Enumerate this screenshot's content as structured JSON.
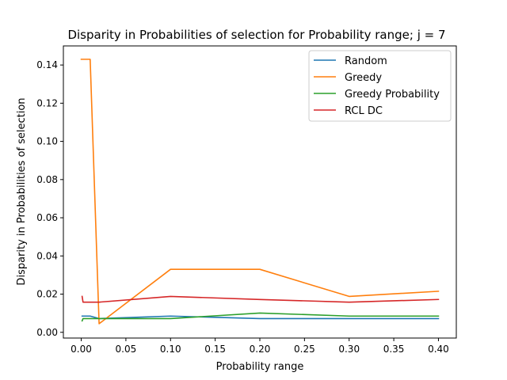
{
  "chart_data": {
    "type": "line",
    "title": "Disparity in Probabilities of selection for Probability range; j = 7",
    "xlabel": "Probability range",
    "ylabel": "Disparity in Probabilities of selection",
    "xlim": [
      -0.02,
      0.42
    ],
    "ylim": [
      -0.003,
      0.15
    ],
    "xticks": [
      0.0,
      0.05,
      0.1,
      0.15,
      0.2,
      0.25,
      0.3,
      0.35,
      0.4
    ],
    "xtick_labels": [
      "0.00",
      "0.05",
      "0.10",
      "0.15",
      "0.20",
      "0.25",
      "0.30",
      "0.35",
      "0.40"
    ],
    "yticks": [
      0.0,
      0.02,
      0.04,
      0.06,
      0.08,
      0.1,
      0.12,
      0.14
    ],
    "ytick_labels": [
      "0.00",
      "0.02",
      "0.04",
      "0.06",
      "0.08",
      "0.10",
      "0.12",
      "0.14"
    ],
    "grid": false,
    "legend_position": "top-right",
    "series": [
      {
        "name": "Random",
        "color": "#1f77b4",
        "x": [
          0.001,
          0.01,
          0.02,
          0.1,
          0.2,
          0.3,
          0.4
        ],
        "y": [
          0.0085,
          0.0085,
          0.0072,
          0.0085,
          0.0072,
          0.0072,
          0.0072
        ]
      },
      {
        "name": "Greedy",
        "color": "#ff7f0e",
        "x": [
          0.0,
          0.01,
          0.02,
          0.1,
          0.2,
          0.3,
          0.4
        ],
        "y": [
          0.143,
          0.143,
          0.0045,
          0.033,
          0.033,
          0.0188,
          0.0215
        ]
      },
      {
        "name": "Greedy Probability",
        "color": "#2ca02c",
        "x": [
          0.001,
          0.002,
          0.01,
          0.02,
          0.1,
          0.2,
          0.3,
          0.4
        ],
        "y": [
          0.006,
          0.0072,
          0.0072,
          0.0072,
          0.0072,
          0.0101,
          0.0085,
          0.0085
        ]
      },
      {
        "name": "RCL DC",
        "color": "#d62728",
        "x": [
          0.001,
          0.002,
          0.01,
          0.02,
          0.1,
          0.2,
          0.3,
          0.4
        ],
        "y": [
          0.0188,
          0.0158,
          0.0158,
          0.0158,
          0.0188,
          0.0172,
          0.0158,
          0.0172
        ]
      }
    ]
  }
}
